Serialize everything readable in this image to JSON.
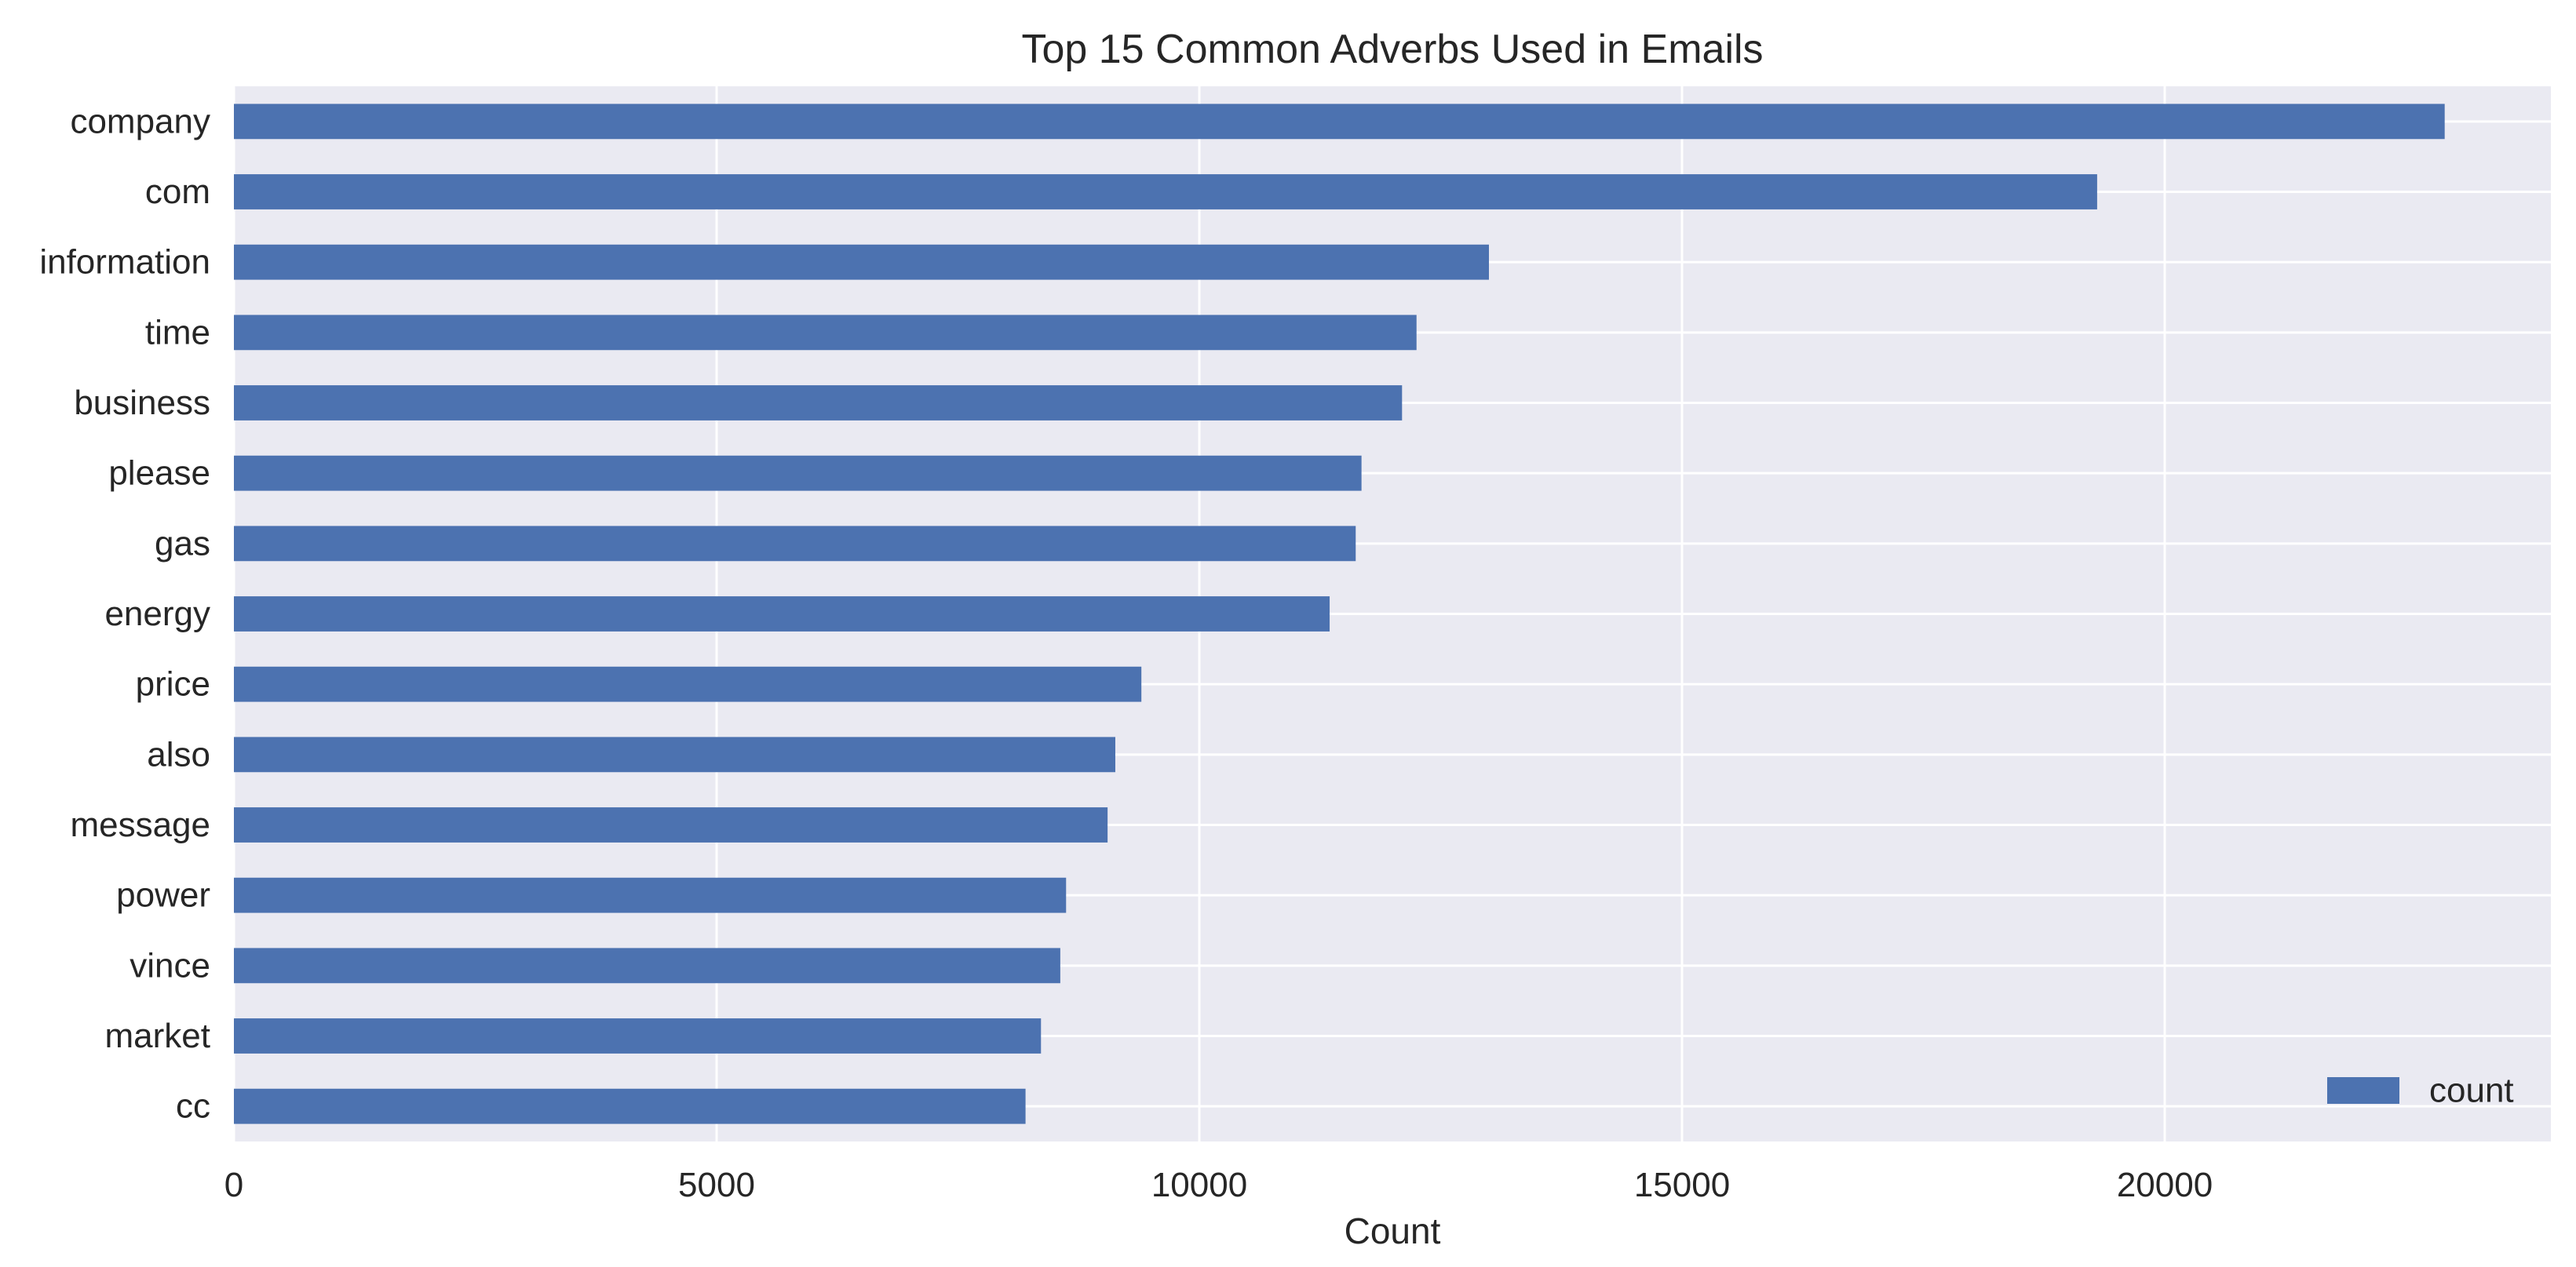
{
  "chart_data": {
    "type": "bar",
    "orientation": "horizontal",
    "title": "Top 15 Common Adverbs Used in Emails",
    "xlabel": "Count",
    "ylabel": "",
    "categories": [
      "company",
      "com",
      "information",
      "time",
      "business",
      "please",
      "gas",
      "energy",
      "price",
      "also",
      "message",
      "power",
      "vince",
      "market",
      "cc"
    ],
    "series": [
      {
        "name": "count",
        "color": "#4c72b0",
        "values": [
          22900,
          19300,
          13000,
          12250,
          12100,
          11680,
          11620,
          11350,
          9400,
          9130,
          9050,
          8620,
          8560,
          8360,
          8200
        ]
      }
    ],
    "xlim": [
      0,
      24000
    ],
    "xticks": [
      0,
      5000,
      10000,
      15000,
      20000
    ],
    "grid": true,
    "legend_position": "bottom-right",
    "background_color": "#eaeaf2",
    "grid_color": "#ffffff"
  }
}
